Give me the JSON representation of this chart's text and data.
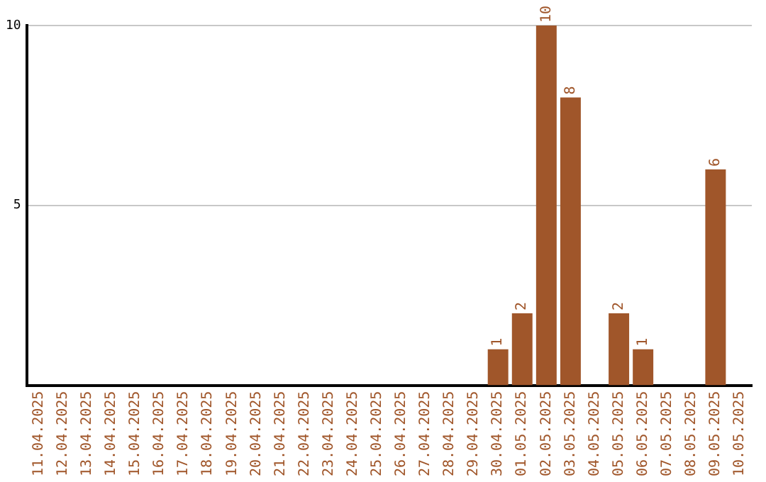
{
  "chart_data": {
    "type": "bar",
    "categories": [
      "11.04.2025",
      "12.04.2025",
      "13.04.2025",
      "14.04.2025",
      "15.04.2025",
      "16.04.2025",
      "17.04.2025",
      "18.04.2025",
      "19.04.2025",
      "20.04.2025",
      "21.04.2025",
      "22.04.2025",
      "23.04.2025",
      "24.04.2025",
      "25.04.2025",
      "26.04.2025",
      "27.04.2025",
      "28.04.2025",
      "29.04.2025",
      "30.04.2025",
      "01.05.2025",
      "02.05.2025",
      "03.05.2025",
      "04.05.2025",
      "05.05.2025",
      "06.05.2025",
      "07.05.2025",
      "08.05.2025",
      "09.05.2025",
      "10.05.2025"
    ],
    "values": [
      0,
      0,
      0,
      0,
      0,
      0,
      0,
      0,
      0,
      0,
      0,
      0,
      0,
      0,
      0,
      0,
      0,
      0,
      0,
      1,
      2,
      10,
      8,
      0,
      2,
      1,
      0,
      0,
      6,
      0
    ],
    "value_labels": [
      null,
      null,
      null,
      null,
      null,
      null,
      null,
      null,
      null,
      null,
      null,
      null,
      null,
      null,
      null,
      null,
      null,
      null,
      null,
      "1",
      "2",
      "10",
      "8",
      null,
      "2",
      "1",
      null,
      null,
      "6",
      null
    ],
    "color": "#a0562a",
    "ylim": [
      0,
      10
    ],
    "yticks": [
      5,
      10
    ],
    "grid": "y",
    "legend": false
  }
}
